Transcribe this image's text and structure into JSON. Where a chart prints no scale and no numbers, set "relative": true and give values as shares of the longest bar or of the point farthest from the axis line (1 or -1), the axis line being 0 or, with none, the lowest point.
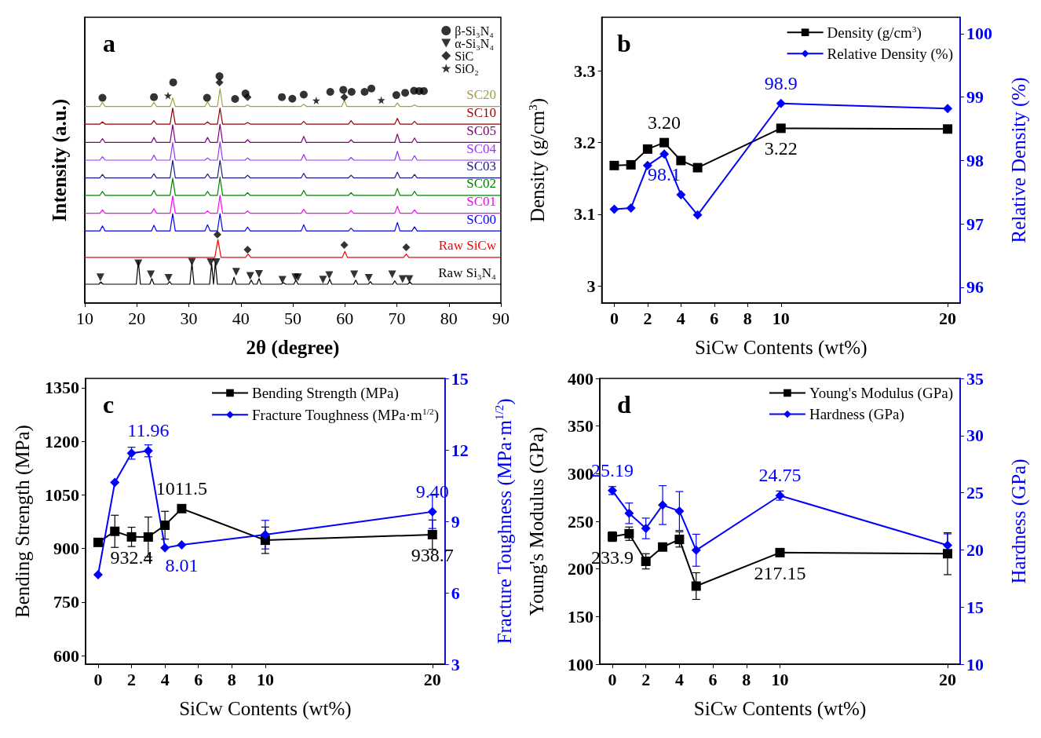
{
  "chart_data": [
    {
      "type": "line",
      "title": "a",
      "xlabel": "2θ (degree)",
      "ylabel": "Intensity (a.u.)",
      "relative": true,
      "xlim": [
        10,
        90
      ],
      "xticks": [
        10,
        20,
        30,
        40,
        50,
        60,
        70,
        80,
        90
      ],
      "legend": "top right",
      "marker": "none",
      "grid": false,
      "series": [
        {
          "name": "SC20",
          "color": "#a0a040",
          "x": [
            10,
            12.9,
            13.4,
            13.9,
            22.8,
            23.3,
            23.8,
            26.4,
            26.9,
            27.4,
            33.1,
            33.6,
            34.1,
            35.5,
            36.0,
            36.5,
            40.8,
            41.3,
            41.8,
            51.6,
            52.1,
            52.6,
            59.4,
            59.9,
            60.4,
            69.6,
            70.1,
            70.6,
            72.9,
            73.4,
            73.9,
            90
          ],
          "values": [
            0.867,
            0.867,
            0.884,
            0.867,
            0.867,
            0.885,
            0.867,
            0.867,
            0.905,
            0.867,
            0.867,
            0.887,
            0.867,
            0.867,
            0.945,
            0.867,
            0.867,
            0.874,
            0.867,
            0.867,
            0.877,
            0.867,
            0.867,
            0.894,
            0.867,
            0.867,
            0.882,
            0.867,
            0.867,
            0.874,
            0.867,
            0.867
          ]
        },
        {
          "name": "SC10",
          "color": "#990000",
          "x": [
            10,
            12.9,
            13.4,
            13.9,
            22.8,
            23.3,
            23.8,
            26.4,
            26.9,
            27.4,
            33.1,
            33.6,
            34.1,
            35.5,
            36.0,
            36.5,
            40.8,
            41.3,
            41.8,
            51.6,
            52.1,
            52.6,
            60.7,
            61.2,
            61.7,
            69.6,
            70.1,
            70.6,
            72.9,
            73.4,
            73.9,
            90
          ],
          "values": [
            0.789,
            0.789,
            0.799,
            0.789,
            0.789,
            0.804,
            0.789,
            0.789,
            0.86,
            0.789,
            0.789,
            0.799,
            0.789,
            0.789,
            0.86,
            0.789,
            0.789,
            0.796,
            0.789,
            0.789,
            0.801,
            0.789,
            0.789,
            0.804,
            0.789,
            0.789,
            0.814,
            0.789,
            0.789,
            0.801,
            0.789,
            0.789
          ]
        },
        {
          "name": "SC05",
          "color": "#800080",
          "x": [
            10,
            12.9,
            13.4,
            13.9,
            22.8,
            23.3,
            23.8,
            26.4,
            26.9,
            27.4,
            33.1,
            33.6,
            34.1,
            35.5,
            36.0,
            36.5,
            40.8,
            41.3,
            41.8,
            51.6,
            52.1,
            52.6,
            60.7,
            61.2,
            61.7,
            69.6,
            70.1,
            70.6,
            72.9,
            73.4,
            73.9,
            90
          ],
          "values": [
            0.708,
            0.708,
            0.725,
            0.708,
            0.708,
            0.73,
            0.708,
            0.708,
            0.786,
            0.708,
            0.708,
            0.73,
            0.708,
            0.708,
            0.788,
            0.708,
            0.708,
            0.72,
            0.708,
            0.708,
            0.735,
            0.708,
            0.708,
            0.72,
            0.708,
            0.708,
            0.745,
            0.708,
            0.708,
            0.728,
            0.708,
            0.708
          ]
        },
        {
          "name": "SC04",
          "color": "#9933ff",
          "x": [
            10,
            12.9,
            13.4,
            13.9,
            22.8,
            23.3,
            23.8,
            26.4,
            26.9,
            27.4,
            33.1,
            33.6,
            34.1,
            35.5,
            36.0,
            36.5,
            40.8,
            41.3,
            41.8,
            51.6,
            52.1,
            52.6,
            60.7,
            61.2,
            61.7,
            69.6,
            70.1,
            70.6,
            72.9,
            73.4,
            73.9,
            90
          ],
          "values": [
            0.63,
            0.63,
            0.645,
            0.63,
            0.63,
            0.652,
            0.63,
            0.63,
            0.708,
            0.63,
            0.63,
            0.64,
            0.63,
            0.63,
            0.71,
            0.63,
            0.63,
            0.64,
            0.63,
            0.63,
            0.655,
            0.63,
            0.63,
            0.642,
            0.63,
            0.63,
            0.669,
            0.63,
            0.63,
            0.65,
            0.63,
            0.63
          ]
        },
        {
          "name": "SC03",
          "color": "#1a1a80",
          "x": [
            10,
            12.9,
            13.4,
            13.9,
            22.8,
            23.3,
            23.8,
            26.4,
            26.9,
            27.4,
            33.1,
            33.6,
            34.1,
            35.5,
            36.0,
            36.5,
            40.8,
            41.3,
            41.8,
            51.6,
            52.1,
            52.6,
            60.7,
            61.2,
            61.7,
            69.6,
            70.1,
            70.6,
            72.9,
            73.4,
            73.9,
            90
          ],
          "values": [
            0.552,
            0.552,
            0.567,
            0.552,
            0.552,
            0.57,
            0.552,
            0.552,
            0.63,
            0.552,
            0.552,
            0.569,
            0.552,
            0.552,
            0.63,
            0.552,
            0.552,
            0.564,
            0.552,
            0.552,
            0.572,
            0.552,
            0.552,
            0.564,
            0.552,
            0.552,
            0.577,
            0.552,
            0.552,
            0.567,
            0.552,
            0.552
          ]
        },
        {
          "name": "SC02",
          "color": "#008000",
          "x": [
            10,
            12.9,
            13.4,
            13.9,
            22.8,
            23.3,
            23.8,
            26.4,
            26.9,
            27.4,
            33.1,
            33.6,
            34.1,
            35.5,
            36.0,
            36.5,
            40.8,
            41.3,
            41.8,
            51.6,
            52.1,
            52.6,
            60.7,
            61.2,
            61.7,
            69.6,
            70.1,
            70.6,
            72.9,
            73.4,
            73.9,
            90
          ],
          "values": [
            0.475,
            0.475,
            0.492,
            0.475,
            0.475,
            0.497,
            0.475,
            0.475,
            0.551,
            0.475,
            0.475,
            0.492,
            0.475,
            0.475,
            0.555,
            0.475,
            0.475,
            0.487,
            0.475,
            0.475,
            0.497,
            0.475,
            0.475,
            0.487,
            0.475,
            0.475,
            0.505,
            0.475,
            0.475,
            0.492,
            0.475,
            0.475
          ]
        },
        {
          "name": "SC01",
          "color": "#ff00ff",
          "x": [
            10,
            12.9,
            13.4,
            13.9,
            22.8,
            23.3,
            23.8,
            26.4,
            26.9,
            27.4,
            33.1,
            33.6,
            34.1,
            35.5,
            36.0,
            36.5,
            40.8,
            41.3,
            41.8,
            51.6,
            52.1,
            52.6,
            60.7,
            61.2,
            61.7,
            69.6,
            70.1,
            70.6,
            72.9,
            73.4,
            73.9,
            90
          ],
          "values": [
            0.396,
            0.396,
            0.411,
            0.396,
            0.396,
            0.416,
            0.396,
            0.396,
            0.472,
            0.396,
            0.396,
            0.406,
            0.396,
            0.396,
            0.475,
            0.396,
            0.396,
            0.406,
            0.396,
            0.396,
            0.413,
            0.396,
            0.396,
            0.408,
            0.396,
            0.396,
            0.427,
            0.396,
            0.396,
            0.411,
            0.396,
            0.396
          ]
        },
        {
          "name": "SC00",
          "color": "#0000ff",
          "x": [
            10,
            12.9,
            13.4,
            13.9,
            22.8,
            23.3,
            23.8,
            26.4,
            26.9,
            27.4,
            33.1,
            33.6,
            34.1,
            35.5,
            36.0,
            36.5,
            40.8,
            41.3,
            41.8,
            51.6,
            52.1,
            52.6,
            60.7,
            61.2,
            61.7,
            69.6,
            70.1,
            70.6,
            72.9,
            73.4,
            73.9,
            90
          ],
          "values": [
            0.318,
            0.318,
            0.34,
            0.318,
            0.318,
            0.343,
            0.318,
            0.318,
            0.394,
            0.318,
            0.318,
            0.345,
            0.318,
            0.318,
            0.394,
            0.318,
            0.318,
            0.335,
            0.318,
            0.318,
            0.345,
            0.318,
            0.318,
            0.33,
            0.318,
            0.318,
            0.355,
            0.318,
            0.318,
            0.336,
            0.318,
            0.318
          ]
        },
        {
          "name": "Raw SiCw",
          "color": "#ff0000",
          "x": [
            10,
            35.0,
            35.6,
            36.2,
            40.9,
            41.4,
            41.9,
            59.5,
            60.0,
            60.5,
            71.3,
            71.8,
            72.3,
            90
          ],
          "values": [
            0.201,
            0.201,
            0.28,
            0.201,
            0.201,
            0.216,
            0.201,
            0.201,
            0.228,
            0.201,
            0.201,
            0.216,
            0.201,
            0.201
          ]
        },
        {
          "name": "Raw Si₃N₄",
          "color": "#000000",
          "x": [
            10,
            12.7,
            13.1,
            13.5,
            19.9,
            20.3,
            20.7,
            22.5,
            22.9,
            23.3,
            25.9,
            26.3,
            26.7,
            30.2,
            30.6,
            31.0,
            34.0,
            34.4,
            34.75,
            35.1,
            35.5,
            38.3,
            38.7,
            39.1,
            41.6,
            42.0,
            42.4,
            43.1,
            43.5,
            43.9,
            47.8,
            48.2,
            48.6,
            50.2,
            50.6,
            51.0,
            56.7,
            57.1,
            57.5,
            61.7,
            62.1,
            62.5,
            64.5,
            64.9,
            65.3,
            69.2,
            69.6,
            70.0,
            72.1,
            72.5,
            72.9,
            90
          ],
          "values": [
            0.083,
            0.083,
            0.093,
            0.083,
            0.083,
            0.185,
            0.083,
            0.083,
            0.108,
            0.083,
            0.083,
            0.095,
            0.083,
            0.083,
            0.177,
            0.083,
            0.083,
            0.173,
            0.083,
            0.179,
            0.083,
            0.083,
            0.114,
            0.083,
            0.083,
            0.101,
            0.083,
            0.083,
            0.108,
            0.083,
            0.083,
            0.09,
            0.083,
            0.083,
            0.101,
            0.083,
            0.083,
            0.105,
            0.083,
            0.083,
            0.101,
            0.083,
            0.083,
            0.095,
            0.083,
            0.083,
            0.098,
            0.083,
            0.083,
            0.093,
            0.083,
            0.083
          ]
        },
        {
          "name": "β-Si₃N₄",
          "type": "scatter",
          "marker": "circle",
          "color": "#000000",
          "x": [
            13.4,
            23.3,
            27.0,
            33.5,
            35.9,
            38.9,
            40.9,
            47.9,
            49.9,
            52.1,
            57.2,
            59.7,
            61.3,
            63.8,
            65.1,
            69.9,
            71.6,
            73.3,
            74.3,
            75.2
          ],
          "values": [
            0.905,
            0.908,
            0.973,
            0.905,
            1.0,
            0.9,
            0.924,
            0.908,
            0.901,
            0.919,
            0.931,
            0.94,
            0.931,
            0.931,
            0.946,
            0.917,
            0.927,
            0.936,
            0.935,
            0.935
          ]
        },
        {
          "name": "α-Si₃N₄",
          "type": "scatter",
          "marker": "triangle",
          "color": "#000000",
          "x": [
            13.0,
            20.3,
            22.7,
            26.1,
            30.6,
            34.2,
            35.3,
            39.1,
            41.8,
            43.5,
            48.0,
            50.5,
            51.0,
            55.8,
            57.0,
            61.8,
            64.6,
            69.1,
            71.1,
            72.4
          ],
          "values": [
            0.113,
            0.175,
            0.126,
            0.111,
            0.182,
            0.18,
            0.18,
            0.138,
            0.119,
            0.128,
            0.102,
            0.113,
            0.113,
            0.103,
            0.123,
            0.126,
            0.111,
            0.126,
            0.106,
            0.106
          ]
        },
        {
          "name": "SiC",
          "type": "scatter",
          "marker": "diamond",
          "color": "#000000",
          "x": [
            35.9,
            41.3,
            59.9,
            35.5,
            41.3,
            59.9,
            71.8
          ],
          "values": [
            0.973,
            0.908,
            0.908,
            0.302,
            0.235,
            0.256,
            0.246
          ]
        },
        {
          "name": "SiO₂",
          "type": "scatter",
          "marker": "star",
          "color": "#000000",
          "x": [
            26.0,
            54.5,
            67.0
          ],
          "values": [
            0.915,
            0.893,
            0.895
          ]
        }
      ]
    },
    {
      "type": "line",
      "title": "b",
      "xlabel": "SiCw Contents (wt%)",
      "ylabel": "Density (g/cm$^{3}$)",
      "y2label": "Relative Density (%)",
      "x": [
        0,
        1,
        2,
        3,
        4,
        5,
        10,
        20
      ],
      "xlim": [
        -0.75,
        20.75
      ],
      "xticks": [
        0,
        2,
        4,
        6,
        8,
        10,
        20
      ],
      "ylim": [
        2.976,
        3.375
      ],
      "yticks": [
        3.0,
        3.1,
        3.2,
        3.3
      ],
      "y2lim": [
        95.75,
        100.26
      ],
      "y2ticks": [
        96,
        97,
        98,
        99,
        100
      ],
      "legend": "top right",
      "grid": false,
      "line_style": "solid",
      "series": [
        {
          "name": "Density (g/cm$^{3}$)",
          "color": "#000000",
          "marker": "square",
          "values": [
            3.168,
            3.169,
            3.191,
            3.2,
            3.175,
            3.165,
            3.22,
            3.219
          ],
          "value_labels": [
            null,
            null,
            null,
            "3.20",
            null,
            null,
            "3.22",
            null
          ]
        },
        {
          "name": "Relative Density (%)",
          "color": "#0000ff",
          "marker": "diamond",
          "axis": "y2",
          "values": [
            97.23,
            97.25,
            97.92,
            98.1,
            97.46,
            97.14,
            98.9,
            98.82
          ],
          "value_labels": [
            null,
            null,
            null,
            "98.1",
            null,
            null,
            "98.9",
            null
          ]
        }
      ]
    },
    {
      "type": "line",
      "title": "c",
      "xlabel": "SiCw Contents (wt%)",
      "ylabel": "Bending Strength (MPa)",
      "y2label": "Fracture Toughness (MPa·m$^{1/2}$)",
      "x": [
        0,
        1,
        2,
        3,
        4,
        5,
        10,
        20
      ],
      "xlim": [
        -0.75,
        20.75
      ],
      "xticks": [
        0,
        2,
        4,
        6,
        8,
        10,
        20
      ],
      "ylim": [
        576,
        1376
      ],
      "yticks": [
        600,
        750,
        900,
        1050,
        1200,
        1350
      ],
      "y2lim": [
        3,
        15
      ],
      "y2ticks": [
        3,
        6,
        9,
        12,
        15
      ],
      "legend": "top right",
      "grid": false,
      "line_style": "solid",
      "series": [
        {
          "name": "Bending Strength (MPa)",
          "color": "#000000",
          "marker": "square",
          "values": [
            917,
            948,
            932.4,
            932,
            965,
            1011.5,
            923,
            938.7
          ],
          "errors": [
            null,
            45,
            27,
            56,
            39,
            null,
            37,
            41
          ],
          "value_labels": [
            null,
            null,
            "932.4",
            null,
            null,
            "1011.5",
            null,
            "938.7"
          ]
        },
        {
          "name": "Fracture Toughness (MPa·m$^{1/2}$)",
          "color": "#0000ff",
          "marker": "diamond",
          "axis": "y2",
          "values": [
            6.76,
            10.63,
            11.86,
            11.96,
            7.89,
            8.01,
            8.44,
            9.4
          ],
          "errors": [
            null,
            null,
            0.25,
            0.25,
            null,
            null,
            0.6,
            0.7
          ],
          "value_labels": [
            null,
            null,
            null,
            "11.96",
            null,
            "8.01",
            null,
            "9.40"
          ]
        }
      ]
    },
    {
      "type": "line",
      "title": "d",
      "xlabel": "SiCw Contents (wt%)",
      "ylabel": "Young's Modulus (GPa)",
      "y2label": "Hardness (GPa)",
      "x": [
        0,
        1,
        2,
        3,
        4,
        5,
        10,
        20
      ],
      "xlim": [
        -0.75,
        20.75
      ],
      "xticks": [
        0,
        2,
        4,
        6,
        8,
        10,
        20
      ],
      "ylim": [
        100,
        400
      ],
      "yticks": [
        100,
        150,
        200,
        250,
        300,
        350,
        400
      ],
      "y2lim": [
        10,
        35
      ],
      "y2ticks": [
        10,
        15,
        20,
        25,
        30,
        35
      ],
      "legend": "top right",
      "grid": false,
      "line_style": "solid",
      "series": [
        {
          "name": "Young's Modulus (GPa)",
          "color": "#000000",
          "marker": "square",
          "values": [
            233.9,
            237,
            208,
            223,
            231,
            182,
            217.15,
            216
          ],
          "errors": [
            5,
            7,
            8,
            null,
            8,
            14,
            null,
            22
          ],
          "value_labels": [
            "233.9",
            null,
            null,
            null,
            null,
            null,
            "217.15",
            null
          ]
        },
        {
          "name": "Hardness (GPa)",
          "color": "#0000ff",
          "marker": "diamond",
          "axis": "y2",
          "values": [
            25.19,
            23.2,
            21.88,
            23.92,
            23.4,
            19.97,
            24.75,
            20.4
          ],
          "errors": [
            0.35,
            0.9,
            0.9,
            1.7,
            1.7,
            1.4,
            0.4,
            1.0
          ],
          "value_labels": [
            "25.19",
            null,
            null,
            null,
            null,
            null,
            "24.75",
            null
          ]
        }
      ]
    }
  ]
}
